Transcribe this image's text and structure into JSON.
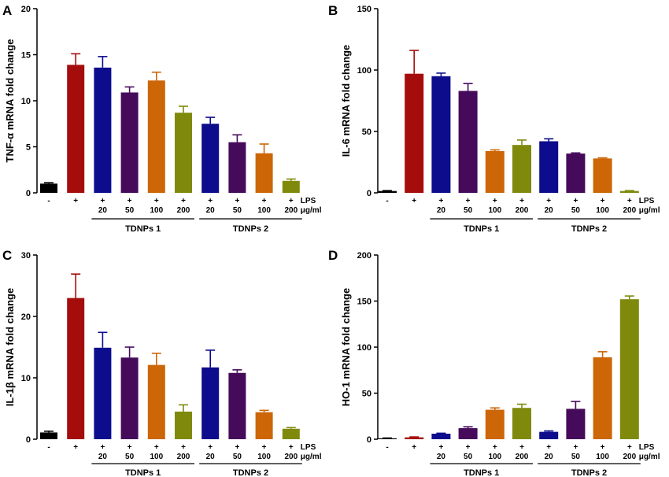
{
  "chart_data": [
    {
      "type": "bar",
      "panel": "A",
      "ylabel": "TNF-α mRNA fold change",
      "ylim": [
        0,
        20
      ],
      "yticks": [
        0,
        5,
        10,
        15,
        20
      ],
      "categories": [
        "-",
        "+",
        "+ 20",
        "+ 50",
        "+ 100",
        "+ 200",
        "+ 20",
        "+ 50",
        "+ 100",
        "+ 200"
      ],
      "lps_row": [
        "-",
        "+",
        "+",
        "+",
        "+",
        "+",
        "+",
        "+",
        "+",
        "+"
      ],
      "dose_row": [
        "",
        "",
        "20",
        "50",
        "100",
        "200",
        "20",
        "50",
        "100",
        "200"
      ],
      "values": [
        1.0,
        13.9,
        13.6,
        10.9,
        12.2,
        8.7,
        7.5,
        5.5,
        4.3,
        1.3
      ],
      "errors": [
        0.1,
        1.2,
        1.2,
        0.6,
        0.9,
        0.7,
        0.7,
        0.8,
        1.0,
        0.2
      ],
      "colors": [
        "#000000",
        "#a50d0d",
        "#0c0c8c",
        "#450a5a",
        "#cc6606",
        "#7f8a0c",
        "#0c0c8c",
        "#450a5a",
        "#cc6606",
        "#7f8a0c"
      ],
      "lps_label": "LPS",
      "unit_label": "μg/ml",
      "groups": [
        {
          "label": "TDNPs 1",
          "start": 2,
          "end": 5
        },
        {
          "label": "TDNPs 2",
          "start": 6,
          "end": 9
        }
      ]
    },
    {
      "type": "bar",
      "panel": "B",
      "ylabel": "IL-6 mRNA fold change",
      "ylim": [
        0,
        150
      ],
      "yticks": [
        0,
        50,
        100,
        150
      ],
      "categories": [
        "-",
        "+",
        "+ 20",
        "+ 50",
        "+ 100",
        "+ 200",
        "+ 20",
        "+ 50",
        "+ 100",
        "+ 200"
      ],
      "lps_row": [
        "-",
        "+",
        "+",
        "+",
        "+",
        "+",
        "+",
        "+",
        "+",
        "+"
      ],
      "dose_row": [
        "",
        "",
        "20",
        "50",
        "100",
        "200",
        "20",
        "50",
        "100",
        "200"
      ],
      "values": [
        1.5,
        97,
        95,
        83,
        34,
        39,
        42,
        32,
        28,
        1.5
      ],
      "errors": [
        0.3,
        19,
        2.5,
        6,
        1,
        4,
        2,
        0.5,
        0.5,
        0.3
      ],
      "colors": [
        "#000000",
        "#a50d0d",
        "#0c0c8c",
        "#450a5a",
        "#cc6606",
        "#7f8a0c",
        "#0c0c8c",
        "#450a5a",
        "#cc6606",
        "#7f8a0c"
      ],
      "lps_label": "LPS",
      "unit_label": "μg/ml",
      "groups": [
        {
          "label": "TDNPs 1",
          "start": 2,
          "end": 5
        },
        {
          "label": "TDNPs 2",
          "start": 6,
          "end": 9
        }
      ]
    },
    {
      "type": "bar",
      "panel": "C",
      "ylabel": "IL-1β mRNA fold change",
      "ylim": [
        0,
        30
      ],
      "yticks": [
        0,
        10,
        20,
        30
      ],
      "categories": [
        "-",
        "+",
        "+ 20",
        "+ 50",
        "+ 100",
        "+ 200",
        "+ 20",
        "+ 50",
        "+ 100",
        "+ 200"
      ],
      "lps_row": [
        "-",
        "+",
        "+",
        "+",
        "+",
        "+",
        "+",
        "+",
        "+",
        "+"
      ],
      "dose_row": [
        "",
        "",
        "20",
        "50",
        "100",
        "200",
        "20",
        "50",
        "100",
        "200"
      ],
      "values": [
        1.1,
        23.0,
        14.9,
        13.3,
        12.1,
        4.5,
        11.7,
        10.8,
        4.4,
        1.7
      ],
      "errors": [
        0.2,
        3.9,
        2.5,
        1.7,
        1.9,
        1.1,
        2.8,
        0.5,
        0.3,
        0.2
      ],
      "colors": [
        "#000000",
        "#a50d0d",
        "#0c0c8c",
        "#450a5a",
        "#cc6606",
        "#7f8a0c",
        "#0c0c8c",
        "#450a5a",
        "#cc6606",
        "#7f8a0c"
      ],
      "lps_label": "LPS",
      "unit_label": "μg/ml",
      "groups": [
        {
          "label": "TDNPs 1",
          "start": 2,
          "end": 5
        },
        {
          "label": "TDNPs 2",
          "start": 6,
          "end": 9
        }
      ]
    },
    {
      "type": "bar",
      "panel": "D",
      "ylabel": "HO-1 mRNA fold change",
      "ylim": [
        0,
        200
      ],
      "yticks": [
        0,
        50,
        100,
        150,
        200
      ],
      "categories": [
        "-",
        "+",
        "+ 20",
        "+ 50",
        "+ 100",
        "+ 200",
        "+ 20",
        "+ 50",
        "+ 100",
        "+ 200"
      ],
      "lps_row": [
        "-",
        "+",
        "+",
        "+",
        "+",
        "+",
        "+",
        "+",
        "+",
        "+"
      ],
      "dose_row": [
        "",
        "",
        "20",
        "50",
        "100",
        "200",
        "20",
        "50",
        "100",
        "200"
      ],
      "values": [
        1,
        2,
        6,
        12,
        32,
        34,
        8,
        33,
        89,
        152
      ],
      "errors": [
        0.3,
        0.5,
        0.5,
        1.5,
        2,
        4,
        1,
        8,
        6,
        3.5
      ],
      "colors": [
        "#000000",
        "#a50d0d",
        "#0c0c8c",
        "#450a5a",
        "#cc6606",
        "#7f8a0c",
        "#0c0c8c",
        "#450a5a",
        "#cc6606",
        "#7f8a0c"
      ],
      "lps_label": "LPS",
      "unit_label": "μg/ml",
      "groups": [
        {
          "label": "TDNPs 1",
          "start": 2,
          "end": 5
        },
        {
          "label": "TDNPs 2",
          "start": 6,
          "end": 9
        }
      ]
    }
  ]
}
